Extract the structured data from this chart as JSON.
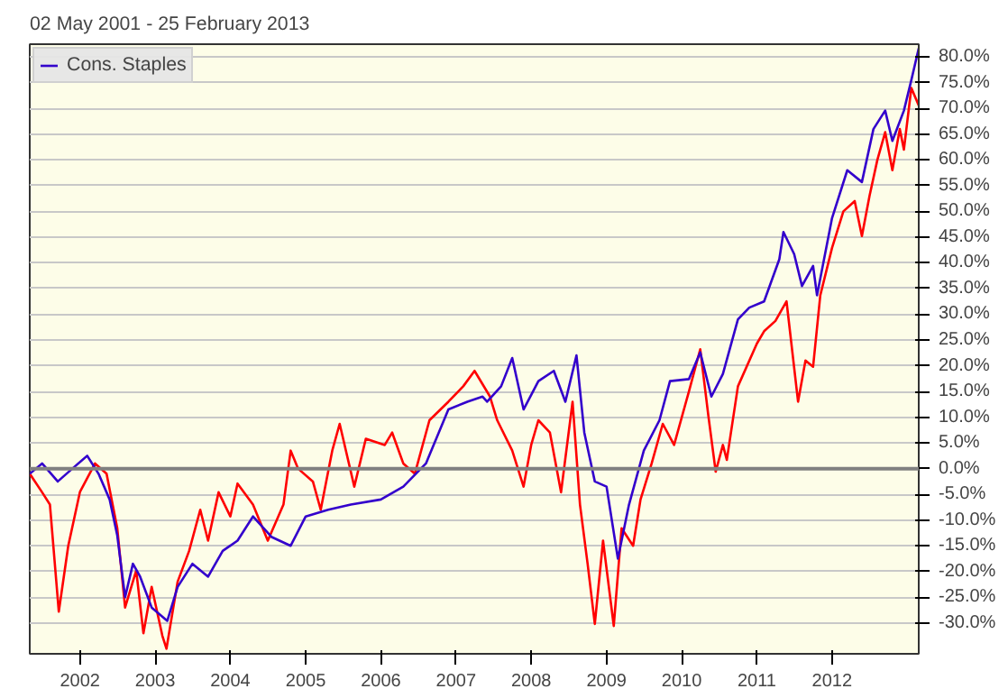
{
  "chart_data": {
    "type": "line",
    "title": "02 May 2001 - 25 February 2013",
    "xlim": [
      "2001-05-02",
      "2013-02-25"
    ],
    "xticks": [
      {
        "value": "2002-01-01",
        "label": "2002"
      },
      {
        "value": "2003-01-01",
        "label": "2003"
      },
      {
        "value": "2004-01-01",
        "label": "2004"
      },
      {
        "value": "2005-01-01",
        "label": "2005"
      },
      {
        "value": "2006-01-01",
        "label": "2006"
      },
      {
        "value": "2007-01-01",
        "label": "2007"
      },
      {
        "value": "2008-01-01",
        "label": "2008"
      },
      {
        "value": "2009-01-01",
        "label": "2009"
      },
      {
        "value": "2010-01-01",
        "label": "2010"
      },
      {
        "value": "2011-01-01",
        "label": "2011"
      },
      {
        "value": "2012-01-01",
        "label": "2012"
      }
    ],
    "ylim": [
      -36,
      82.5
    ],
    "yticks": [
      {
        "value": -30,
        "label": "-30.0%"
      },
      {
        "value": -25,
        "label": "-25.0%"
      },
      {
        "value": -20,
        "label": "-20.0%"
      },
      {
        "value": -15,
        "label": "-15.0%"
      },
      {
        "value": -10,
        "label": "-10.0%"
      },
      {
        "value": -5,
        "label": "-5.0%"
      },
      {
        "value": 0,
        "label": "0.0%"
      },
      {
        "value": 5,
        "label": "5.0%"
      },
      {
        "value": 10,
        "label": "10.0%"
      },
      {
        "value": 15,
        "label": "15.0%"
      },
      {
        "value": 20,
        "label": "20.0%"
      },
      {
        "value": 25,
        "label": "25.0%"
      },
      {
        "value": 30,
        "label": "30.0%"
      },
      {
        "value": 35,
        "label": "35.0%"
      },
      {
        "value": 40,
        "label": "40.0%"
      },
      {
        "value": 45,
        "label": "45.0%"
      },
      {
        "value": 50,
        "label": "50.0%"
      },
      {
        "value": 55,
        "label": "55.0%"
      },
      {
        "value": 60,
        "label": "60.0%"
      },
      {
        "value": 65,
        "label": "65.0%"
      },
      {
        "value": 70,
        "label": "70.0%"
      },
      {
        "value": 75,
        "label": "75.0%"
      },
      {
        "value": 80,
        "label": "80.0%"
      }
    ],
    "grid": "y",
    "legend": "top left",
    "ref_lines": [
      {
        "axis": "y",
        "value": 0,
        "color": "#808080"
      }
    ],
    "series": [
      {
        "color": "#ff0000",
        "x": [
          "2001-05-02",
          "2001-07-01",
          "2001-08-08",
          "2001-09-20",
          "2001-11-05",
          "2002-01-01",
          "2002-03-15",
          "2002-05-10",
          "2002-07-01",
          "2002-08-08",
          "2002-10-01",
          "2002-11-05",
          "2002-12-15",
          "2003-02-05",
          "2003-02-25",
          "2003-04-20",
          "2003-06-15",
          "2003-08-08",
          "2003-09-15",
          "2003-11-05",
          "2004-01-01",
          "2004-02-05",
          "2004-04-20",
          "2004-07-01",
          "2004-09-15",
          "2004-10-20",
          "2004-11-25",
          "2005-02-05",
          "2005-03-15",
          "2005-05-10",
          "2005-06-15",
          "2005-08-25",
          "2005-10-20",
          "2006-01-20",
          "2006-02-25",
          "2006-04-20",
          "2006-06-15",
          "2006-08-25",
          "2006-11-25",
          "2007-02-05",
          "2007-04-01",
          "2007-06-15",
          "2007-07-20",
          "2007-10-01",
          "2007-11-25",
          "2008-01-01",
          "2008-02-05",
          "2008-04-01",
          "2008-05-25",
          "2008-07-20",
          "2008-08-25",
          "2008-10-01",
          "2008-11-05",
          "2008-12-15",
          "2009-02-05",
          "2009-03-15",
          "2009-05-10",
          "2009-06-15",
          "2009-08-08",
          "2009-10-01",
          "2009-11-25",
          "2010-02-05",
          "2010-04-01",
          "2010-05-10",
          "2010-06-15",
          "2010-07-20",
          "2010-08-08",
          "2010-10-01",
          "2011-01-01",
          "2011-02-05",
          "2011-04-01",
          "2011-05-25",
          "2011-07-20",
          "2011-08-25",
          "2011-10-01",
          "2011-11-05",
          "2012-01-01",
          "2012-02-25",
          "2012-04-20",
          "2012-05-25",
          "2012-07-01",
          "2012-08-08",
          "2012-09-15",
          "2012-10-20",
          "2012-11-25",
          "2012-12-15",
          "2013-01-20",
          "2013-02-25"
        ],
        "values": [
          -1,
          -4.6,
          -7,
          -27.8,
          -15,
          -4.5,
          1,
          -1,
          -11.6,
          -27,
          -19.8,
          -32,
          -23,
          -32.5,
          -35,
          -22,
          -16,
          -8,
          -14,
          -4.6,
          -9.3,
          -2.9,
          -7,
          -14,
          -7,
          3.5,
          0,
          -2.5,
          -8,
          3.5,
          8.7,
          -3.5,
          5.8,
          4.6,
          7,
          1,
          -1,
          9.4,
          13,
          16,
          19,
          14,
          9.4,
          3.5,
          -3.5,
          4.6,
          9.4,
          7,
          -4.6,
          13,
          -7,
          -18.5,
          -30.2,
          -14,
          -30.6,
          -11.6,
          -15,
          -6,
          1,
          8.7,
          4.6,
          15,
          23.2,
          10.4,
          -0.6,
          4.6,
          1.7,
          16,
          24.3,
          26.7,
          28.7,
          32.5,
          13,
          21,
          19.8,
          33.7,
          42.9,
          50,
          52,
          45.2,
          53,
          60,
          65.4,
          58,
          66,
          62,
          74,
          70.6
        ]
      },
      {
        "name": "Cons. Staples",
        "color": "#3300cc",
        "x": [
          "2001-05-02",
          "2001-07-01",
          "2001-09-15",
          "2001-11-25",
          "2002-02-05",
          "2002-04-01",
          "2002-05-25",
          "2002-07-01",
          "2002-08-08",
          "2002-09-15",
          "2002-10-20",
          "2002-12-15",
          "2003-03-01",
          "2003-04-20",
          "2003-07-01",
          "2003-09-15",
          "2003-11-25",
          "2004-02-05",
          "2004-04-20",
          "2004-07-20",
          "2004-10-20",
          "2005-01-01",
          "2005-04-20",
          "2005-08-08",
          "2006-01-01",
          "2006-04-20",
          "2006-08-08",
          "2006-11-25",
          "2007-02-25",
          "2007-05-10",
          "2007-06-01",
          "2007-08-08",
          "2007-10-01",
          "2007-11-25",
          "2008-02-05",
          "2008-04-20",
          "2008-06-15",
          "2008-08-08",
          "2008-09-15",
          "2008-11-05",
          "2009-01-01",
          "2009-02-25",
          "2009-04-20",
          "2009-07-01",
          "2009-09-15",
          "2009-11-05",
          "2010-02-05",
          "2010-04-01",
          "2010-05-25",
          "2010-07-20",
          "2010-10-01",
          "2010-11-25",
          "2011-02-05",
          "2011-04-20",
          "2011-05-10",
          "2011-07-01",
          "2011-08-08",
          "2011-10-01",
          "2011-10-20",
          "2012-01-01",
          "2012-03-15",
          "2012-05-25",
          "2012-07-20",
          "2012-09-15",
          "2012-10-20",
          "2012-12-15",
          "2013-01-20",
          "2013-02-25"
        ],
        "values": [
          -1,
          1,
          -2.5,
          0,
          2.5,
          -1,
          -6,
          -13,
          -25,
          -18.5,
          -21,
          -27,
          -29.6,
          -23,
          -18.5,
          -21,
          -16,
          -14,
          -9.3,
          -13.3,
          -15,
          -9.3,
          -8,
          -7,
          -6,
          -3.5,
          1,
          11.5,
          13,
          14,
          13,
          16,
          21.5,
          11.5,
          17,
          19,
          13,
          22,
          7,
          -2.5,
          -3.5,
          -17.5,
          -7,
          3.5,
          9.4,
          17,
          17.4,
          22.6,
          14,
          18.4,
          29,
          31.3,
          32.5,
          40.7,
          46,
          41.7,
          35.5,
          39.4,
          33.7,
          48.7,
          58,
          55.7,
          66,
          69.6,
          63.7,
          69.6,
          75.5,
          81.7
        ]
      }
    ]
  }
}
